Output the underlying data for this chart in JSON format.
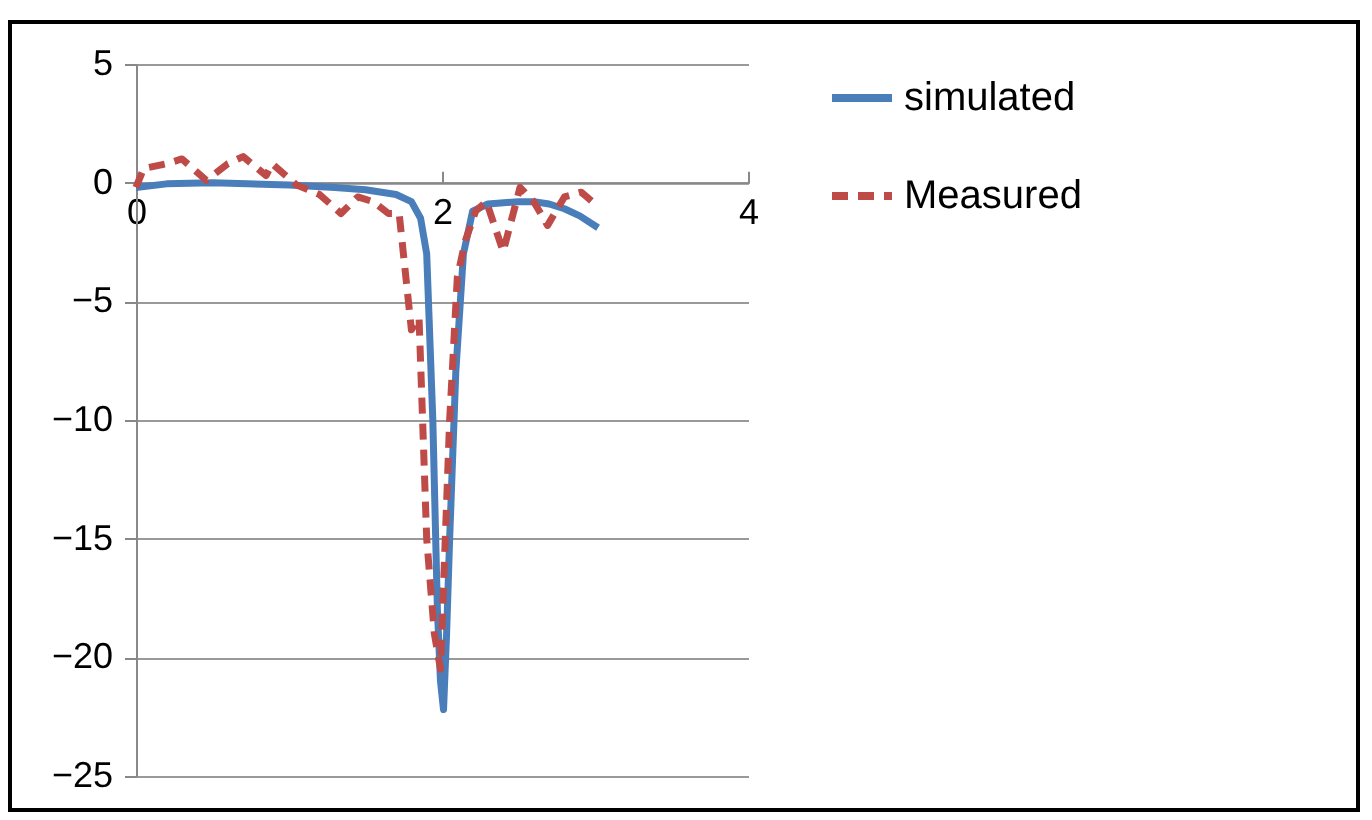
{
  "chart_data": {
    "type": "line",
    "xlim": [
      0,
      4
    ],
    "xticks": [
      0,
      2,
      4
    ],
    "ylim": [
      -25,
      5
    ],
    "yticks": [
      5,
      0,
      -5,
      -10,
      -15,
      -20,
      -25
    ],
    "grid": "y",
    "legend": "right",
    "series": [
      {
        "name": "simulated",
        "color": "#4a7ebb",
        "line_style": "solid",
        "x": [
          0,
          0.2,
          0.5,
          1.0,
          1.3,
          1.5,
          1.7,
          1.8,
          1.86,
          1.9,
          1.94,
          1.97,
          1.99,
          2.01,
          2.03,
          2.05,
          2.09,
          2.14,
          2.2,
          2.3,
          2.5,
          2.6,
          2.7,
          2.8,
          2.9,
          3.02
        ],
        "values": [
          -0.2,
          -0.05,
          0,
          -0.1,
          -0.2,
          -0.3,
          -0.5,
          -0.8,
          -1.5,
          -3,
          -10,
          -18,
          -21,
          -22.2,
          -19,
          -15,
          -8,
          -3,
          -1.2,
          -0.9,
          -0.8,
          -0.8,
          -0.9,
          -1.1,
          -1.4,
          -1.9
        ]
      },
      {
        "name": "Measured",
        "color": "#be4b48",
        "line_style": "dashed",
        "x": [
          0,
          0.05,
          0.2,
          0.3,
          0.46,
          0.6,
          0.7,
          0.85,
          0.89,
          1.05,
          1.2,
          1.34,
          1.45,
          1.55,
          1.65,
          1.72,
          1.8,
          1.85,
          1.9,
          1.95,
          1.99,
          2.05,
          2.1,
          2.15,
          2.22,
          2.29,
          2.4,
          2.51,
          2.6,
          2.69,
          2.8,
          2.91,
          3.0
        ],
        "values": [
          -0.2,
          0.6,
          0.8,
          1.0,
          0.1,
          0.8,
          1.1,
          0.3,
          0.8,
          -0.1,
          -0.5,
          -1.3,
          -0.6,
          -0.8,
          -1.3,
          -1.3,
          -6.2,
          -5.7,
          -15,
          -19,
          -20.5,
          -10,
          -4,
          -2.5,
          -1.2,
          -0.8,
          -2.9,
          -0.2,
          -0.8,
          -1.8,
          -0.6,
          -0.4,
          -0.9
        ]
      }
    ]
  }
}
